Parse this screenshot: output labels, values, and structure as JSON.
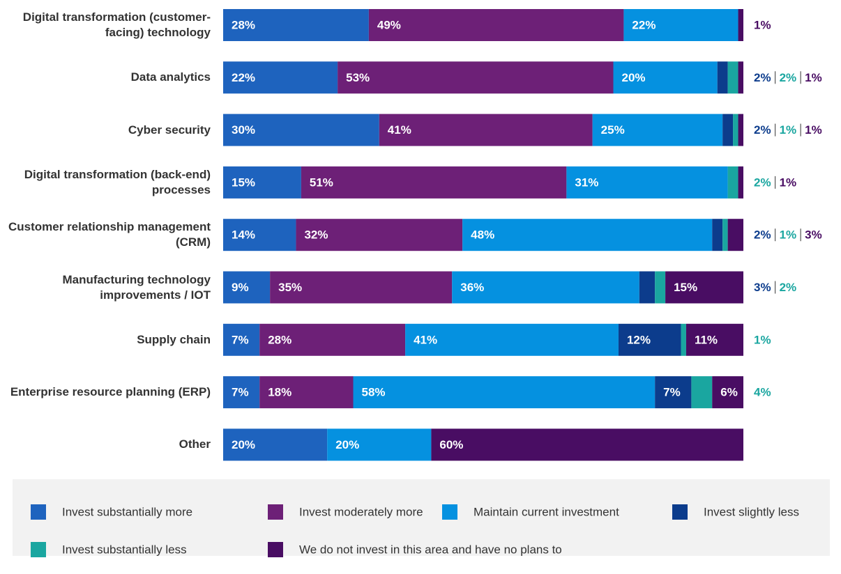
{
  "chart_data": {
    "type": "stacked-bar-horizontal",
    "categories": [
      "Digital transformation (customer-facing) technology",
      "Data analytics",
      "Cyber security",
      "Digital transformation (back-end) processes",
      "Customer relationship management (CRM)",
      "Manufacturing technology improvements / IOT",
      "Supply chain",
      "Enterprise resource planning (ERP)",
      "Other"
    ],
    "series": [
      {
        "name": "Invest substantially more",
        "color": "#1e63be",
        "values": [
          28,
          22,
          30,
          15,
          14,
          9,
          7,
          7,
          20
        ],
        "value_labels": [
          "28%",
          "22%",
          "30%",
          "15%",
          "14%",
          "9%",
          "7%",
          "7%",
          "20%"
        ]
      },
      {
        "name": "Invest moderately more",
        "color": "#6d2077",
        "values": [
          49,
          53,
          41,
          51,
          32,
          35,
          28,
          18,
          null
        ],
        "value_labels": [
          "49%",
          "53%",
          "41%",
          "51%",
          "32%",
          "35%",
          "28%",
          "18%",
          null
        ]
      },
      {
        "name": "Maintain current investment",
        "color": "#0591e0",
        "values": [
          22,
          20,
          25,
          31,
          48,
          36,
          41,
          58,
          20
        ],
        "value_labels": [
          "22%",
          "20%",
          "25%",
          "31%",
          "48%",
          "36%",
          "41%",
          "58%",
          "20%"
        ]
      },
      {
        "name": "Invest slightly less",
        "color": "#0c3c8c",
        "values": [
          null,
          2,
          2,
          null,
          2,
          3,
          12,
          7,
          null
        ],
        "value_labels": [
          null,
          "2%",
          "2%",
          null,
          "2%",
          "3%",
          "12%",
          "7%",
          null
        ]
      },
      {
        "name": "Invest substantially less",
        "color": "#1aa6a0",
        "values": [
          null,
          2,
          1,
          2,
          1,
          2,
          1,
          4,
          null
        ],
        "value_labels": [
          null,
          "2%",
          "1%",
          "2%",
          "1%",
          "2%",
          "1%",
          "4%",
          null
        ]
      },
      {
        "name": "We do not invest in this area and have no plans to",
        "color": "#490d63",
        "values": [
          1,
          1,
          1,
          1,
          3,
          15,
          11,
          6,
          60
        ],
        "value_labels": [
          "1%",
          "1%",
          "1%",
          "1%",
          "3%",
          "15%",
          "11%",
          "6%",
          "60%"
        ]
      }
    ]
  }
}
